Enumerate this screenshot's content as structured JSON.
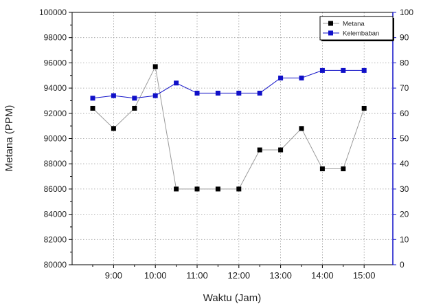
{
  "chart_data": {
    "type": "line",
    "x": [
      "8:30",
      "9:00",
      "9:30",
      "10:00",
      "10:30",
      "11:00",
      "11:30",
      "12:00",
      "12:30",
      "13:00",
      "13:30",
      "14:00",
      "14:30",
      "15:00"
    ],
    "x_tick_labels": [
      "9:00",
      "10:00",
      "11:00",
      "12:00",
      "13:00",
      "14:00",
      "15:00"
    ],
    "xlabel": "Waktu (Jam)",
    "ylabel": "Metana (PPM)",
    "ylim": [
      80000,
      100000
    ],
    "y_ticks": [
      "80000",
      "82000",
      "84000",
      "86000",
      "88000",
      "90000",
      "92000",
      "94000",
      "96000",
      "98000",
      "100000"
    ],
    "y2lim": [
      0,
      100
    ],
    "y2_ticks": [
      "0",
      "10",
      "20",
      "30",
      "40",
      "50",
      "60",
      "70",
      "80",
      "90",
      "100"
    ],
    "grid": true,
    "legend_position": "top-right",
    "series": [
      {
        "name": "Metana",
        "axis": "left",
        "color": "#000000",
        "line_color": "#9a9a9a",
        "marker": "square",
        "values": [
          92400,
          90800,
          92400,
          95700,
          86000,
          86000,
          86000,
          86000,
          89100,
          89100,
          90800,
          87600,
          87600,
          92400
        ]
      },
      {
        "name": "Kelembaban",
        "axis": "right",
        "color": "#1010c8",
        "line_color": "#1010c8",
        "marker": "square",
        "values": [
          66,
          67,
          66,
          67,
          72,
          68,
          68,
          68,
          68,
          74,
          74,
          77,
          77,
          77
        ]
      }
    ],
    "colors": {
      "right_axis": "#1010c8",
      "grid": "#9a9a9a"
    }
  }
}
